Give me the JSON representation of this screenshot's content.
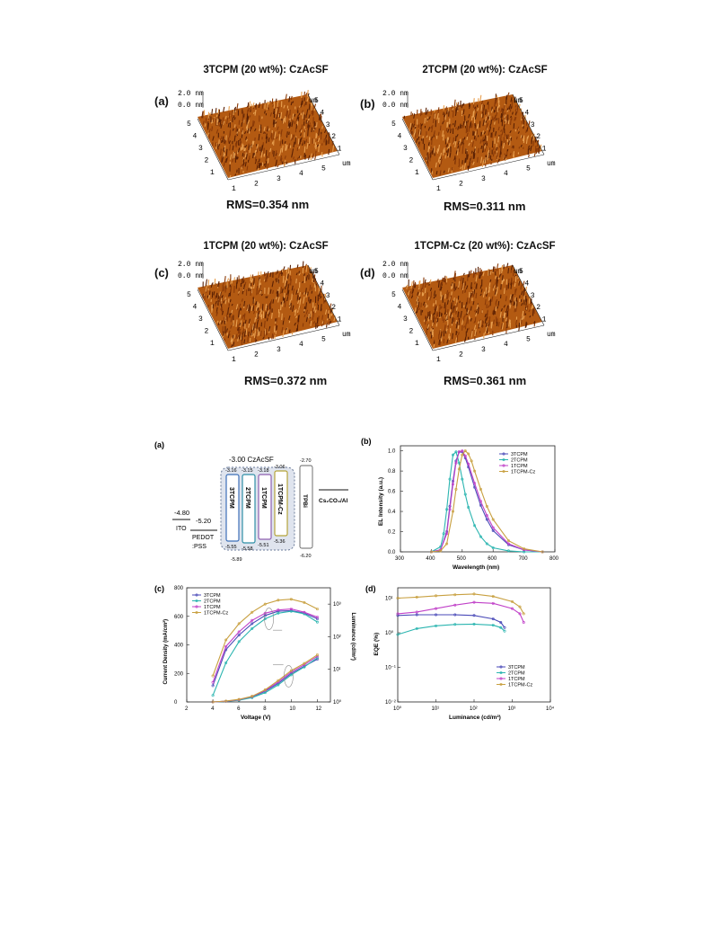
{
  "afm": {
    "panels": [
      {
        "tag": "(a)",
        "title": "3TCPM (20 wt%): CzAcSF",
        "rms": "RMS=0.354 nm"
      },
      {
        "tag": "(b)",
        "title": "2TCPM (20 wt%): CzAcSF",
        "rms": "RMS=0.311 nm"
      },
      {
        "tag": "(c)",
        "title": "1TCPM (20 wt%): CzAcSF",
        "rms": "RMS=0.372 nm"
      },
      {
        "tag": "(d)",
        "title": "1TCPM-Cz (20 wt%): CzAcSF",
        "rms": "RMS=0.361 nm"
      }
    ],
    "z_top": "2.0",
    "z_unit": "nm",
    "z_zero": "0.0",
    "xy_unit": "um",
    "ticks": [
      "1",
      "2",
      "3",
      "4",
      "5"
    ],
    "surface_color": "#b35a12"
  },
  "energy": {
    "tag": "(a)",
    "host_label": "-3.00  CzAcSF",
    "ito": {
      "label": "ITO",
      "value": "-4.80"
    },
    "pedot": {
      "label_1": "PEDOT",
      "label_2": ":PSS",
      "value": "-5.20"
    },
    "host_homo": "-5.89",
    "emitters": [
      {
        "name": "3TCPM",
        "lumo": "-3.16",
        "homo": "-5.55",
        "color": "#3c6fb8"
      },
      {
        "name": "2TCPM",
        "lumo": "-3.15",
        "homo": "-5.58",
        "color": "#2f8fa6"
      },
      {
        "name": "1TCPM",
        "lumo": "-3.18",
        "homo": "-5.51",
        "color": "#8e5fb0"
      },
      {
        "name": "1TCPM-Cz",
        "lumo": "-3.06",
        "homo": "-5.36",
        "color": "#b5a33a"
      }
    ],
    "tpbi": {
      "label": "TPBi",
      "lumo": "-2.70",
      "homo": "-6.20"
    },
    "cathode": "Cs₂CO₃/Al"
  },
  "colors": {
    "3TCPM": "#4a4ab8",
    "2TCPM": "#2bb5b0",
    "1TCPM": "#c040c8",
    "1TCPM-Cz": "#c8a040"
  },
  "chart_data": [
    {
      "type": "line",
      "tag": "(b)",
      "xlabel": "Wavelength (nm)",
      "ylabel": "EL Intensity (a.u.)",
      "xlim": [
        300,
        800
      ],
      "ylim": [
        0,
        1.05
      ],
      "xticks": [
        "300",
        "400",
        "500",
        "600",
        "700",
        "800"
      ],
      "yticks": [
        "0.0",
        "0.2",
        "0.4",
        "0.6",
        "0.8",
        "1.0"
      ],
      "legend": "top-right",
      "series": [
        {
          "name": "3TCPM",
          "peak": 492,
          "x": [
            400,
            430,
            450,
            460,
            470,
            480,
            490,
            500,
            510,
            520,
            540,
            560,
            580,
            600,
            650,
            700,
            760
          ],
          "values": [
            0,
            0.02,
            0.2,
            0.45,
            0.7,
            0.9,
            0.99,
            0.99,
            0.93,
            0.84,
            0.64,
            0.46,
            0.32,
            0.21,
            0.07,
            0.02,
            0.0
          ]
        },
        {
          "name": "2TCPM",
          "peak": 474,
          "x": [
            400,
            430,
            440,
            450,
            460,
            470,
            480,
            490,
            500,
            510,
            520,
            540,
            560,
            580,
            600,
            650,
            700,
            760
          ],
          "values": [
            0,
            0.05,
            0.18,
            0.42,
            0.72,
            0.96,
            0.99,
            0.88,
            0.72,
            0.57,
            0.44,
            0.26,
            0.15,
            0.08,
            0.04,
            0.01,
            0,
            0
          ]
        },
        {
          "name": "1TCPM",
          "peak": 495,
          "x": [
            400,
            430,
            450,
            460,
            470,
            480,
            490,
            500,
            510,
            520,
            540,
            560,
            580,
            600,
            650,
            700,
            760
          ],
          "values": [
            0,
            0.02,
            0.18,
            0.42,
            0.67,
            0.88,
            0.99,
            1.0,
            0.95,
            0.87,
            0.68,
            0.5,
            0.36,
            0.24,
            0.08,
            0.02,
            0.0
          ]
        },
        {
          "name": "1TCPM-Cz",
          "peak": 510,
          "x": [
            400,
            430,
            450,
            470,
            480,
            490,
            500,
            510,
            520,
            530,
            540,
            560,
            580,
            600,
            650,
            700,
            760
          ],
          "values": [
            0,
            0.01,
            0.08,
            0.4,
            0.62,
            0.82,
            0.96,
            1.0,
            0.97,
            0.9,
            0.8,
            0.62,
            0.45,
            0.32,
            0.11,
            0.03,
            0.0
          ]
        }
      ]
    },
    {
      "type": "line",
      "tag": "(c)",
      "xlabel": "Voltage (V)",
      "ylabel": "Current Density (mA/cm²)",
      "y2label": "Luminance (cd/m²)",
      "xlim": [
        2,
        13
      ],
      "ylim": [
        0,
        800
      ],
      "y2lim_log": [
        0,
        3.5
      ],
      "xticks": [
        "2",
        "4",
        "6",
        "8",
        "10",
        "12"
      ],
      "yticks": [
        "0",
        "200",
        "400",
        "600",
        "800"
      ],
      "y2ticks": [
        "10⁰",
        "10¹",
        "10²",
        "10³"
      ],
      "legend": "top-left",
      "x": [
        4,
        5,
        6,
        7,
        8,
        9,
        10,
        11,
        12
      ],
      "current_series": [
        {
          "name": "3TCPM",
          "values": [
            0,
            5,
            15,
            35,
            75,
            130,
            200,
            250,
            300
          ]
        },
        {
          "name": "2TCPM",
          "values": [
            0,
            4,
            12,
            30,
            65,
            120,
            190,
            245,
            310
          ]
        },
        {
          "name": "1TCPM",
          "values": [
            0,
            5,
            16,
            38,
            80,
            140,
            210,
            260,
            320
          ]
        },
        {
          "name": "1TCPM-Cz",
          "values": [
            0,
            6,
            18,
            40,
            85,
            150,
            220,
            270,
            330
          ]
        }
      ],
      "luminance_series": [
        {
          "name": "3TCPM",
          "values_log10": [
            0.5,
            1.6,
            2.05,
            2.4,
            2.65,
            2.78,
            2.8,
            2.72,
            2.55
          ]
        },
        {
          "name": "2TCPM",
          "values_log10": [
            0.2,
            1.2,
            1.85,
            2.25,
            2.55,
            2.72,
            2.78,
            2.7,
            2.45
          ]
        },
        {
          "name": "1TCPM",
          "values_log10": [
            0.6,
            1.7,
            2.15,
            2.5,
            2.72,
            2.82,
            2.85,
            2.75,
            2.6
          ]
        },
        {
          "name": "1TCPM-Cz",
          "values_log10": [
            0.8,
            1.9,
            2.4,
            2.75,
            3.0,
            3.12,
            3.15,
            3.05,
            2.85
          ]
        }
      ]
    },
    {
      "type": "line",
      "tag": "(d)",
      "xlabel": "Luminance (cd/m²)",
      "ylabel": "EQE (%)",
      "xscale": "log",
      "yscale": "log",
      "xlim_log": [
        0,
        4
      ],
      "ylim_log": [
        -2,
        1.3
      ],
      "xticks": [
        "10⁰",
        "10¹",
        "10²",
        "10³",
        "10⁴"
      ],
      "yticks": [
        "10⁻²",
        "10⁻¹",
        "10⁰",
        "10¹"
      ],
      "legend": "bottom-right",
      "series": [
        {
          "name": "3TCPM",
          "x_log10": [
            0,
            0.5,
            1,
            1.5,
            2,
            2.5,
            2.7,
            2.8
          ],
          "y_log10": [
            0.5,
            0.52,
            0.52,
            0.52,
            0.5,
            0.4,
            0.3,
            0.15
          ]
        },
        {
          "name": "2TCPM",
          "x_log10": [
            0,
            0.5,
            1,
            1.5,
            2,
            2.5,
            2.7,
            2.8
          ],
          "y_log10": [
            -0.05,
            0.12,
            0.2,
            0.24,
            0.25,
            0.22,
            0.15,
            0.05
          ]
        },
        {
          "name": "1TCPM",
          "x_log10": [
            0,
            0.5,
            1,
            1.5,
            2,
            2.5,
            3,
            3.2,
            3.3
          ],
          "y_log10": [
            0.55,
            0.6,
            0.7,
            0.8,
            0.88,
            0.85,
            0.7,
            0.55,
            0.3
          ]
        },
        {
          "name": "1TCPM-Cz",
          "x_log10": [
            0,
            0.5,
            1,
            1.5,
            2,
            2.5,
            3,
            3.2,
            3.3
          ],
          "y_log10": [
            1.0,
            1.03,
            1.07,
            1.1,
            1.12,
            1.05,
            0.9,
            0.75,
            0.55
          ]
        }
      ]
    }
  ]
}
